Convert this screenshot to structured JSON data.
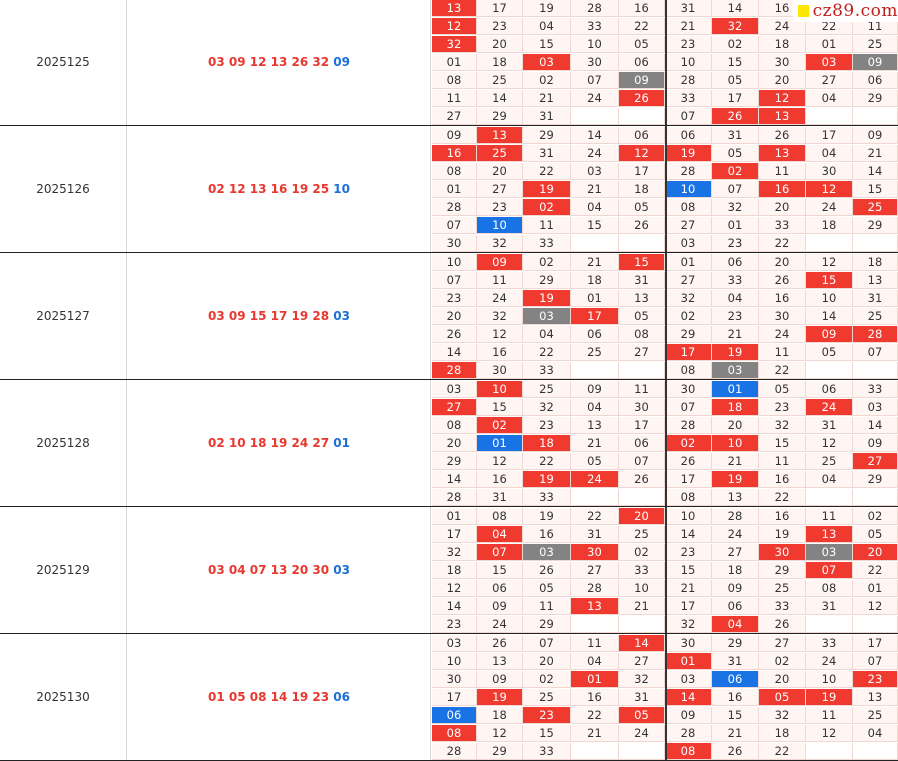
{
  "watermark": {
    "text": "cz89.com",
    "icon": "yellow-square-icon"
  },
  "colors": {
    "hot": "#f0392f",
    "cold": "#838383",
    "blue": "#1973e5",
    "red_text": "#e8382f",
    "blue_text": "#1b6fd6"
  },
  "blocks": [
    {
      "period": "2025125",
      "red_numbers": "03 09 12 13 26 32",
      "blue_number": "09",
      "left_grid": [
        [
          "13",
          "17",
          "19",
          "28",
          "16"
        ],
        [
          "12",
          "23",
          "04",
          "33",
          "22"
        ],
        [
          "32",
          "20",
          "15",
          "10",
          "05"
        ],
        [
          "01",
          "18",
          "03",
          "30",
          "06"
        ],
        [
          "08",
          "25",
          "02",
          "07",
          "09"
        ],
        [
          "11",
          "14",
          "21",
          "24",
          "26"
        ],
        [
          "27",
          "29",
          "31",
          "",
          ""
        ]
      ],
      "left_marks": [
        [
          "h",
          "",
          "",
          "",
          ""
        ],
        [
          "h",
          "",
          "",
          "",
          ""
        ],
        [
          "h",
          "",
          "",
          "",
          ""
        ],
        [
          "",
          "",
          "h",
          "",
          ""
        ],
        [
          "",
          "",
          "",
          "",
          "c"
        ],
        [
          "",
          "",
          "",
          "",
          "h"
        ],
        [
          "",
          "",
          "",
          "",
          ""
        ]
      ],
      "right_grid": [
        [
          "31",
          "14",
          "16",
          "",
          ""
        ],
        [
          "21",
          "32",
          "24",
          "22",
          "11"
        ],
        [
          "23",
          "02",
          "18",
          "01",
          "25"
        ],
        [
          "10",
          "15",
          "30",
          "03",
          "09"
        ],
        [
          "28",
          "05",
          "20",
          "27",
          "06"
        ],
        [
          "33",
          "17",
          "12",
          "04",
          "29"
        ],
        [
          "07",
          "26",
          "13",
          "",
          ""
        ]
      ],
      "right_marks": [
        [
          "",
          "",
          "",
          "",
          ""
        ],
        [
          "",
          "h",
          "",
          "",
          ""
        ],
        [
          "",
          "",
          "",
          "",
          ""
        ],
        [
          "",
          "",
          "",
          "h",
          "c"
        ],
        [
          "",
          "",
          "",
          "",
          ""
        ],
        [
          "",
          "",
          "h",
          "",
          ""
        ],
        [
          "",
          "h",
          "h",
          "",
          ""
        ]
      ]
    },
    {
      "period": "2025126",
      "red_numbers": "02 12 13 16 19 25",
      "blue_number": "10",
      "left_grid": [
        [
          "09",
          "13",
          "29",
          "14",
          "06"
        ],
        [
          "16",
          "25",
          "31",
          "24",
          "12"
        ],
        [
          "08",
          "20",
          "22",
          "03",
          "17"
        ],
        [
          "01",
          "27",
          "19",
          "21",
          "18"
        ],
        [
          "28",
          "23",
          "02",
          "04",
          "05"
        ],
        [
          "07",
          "10",
          "11",
          "15",
          "26"
        ],
        [
          "30",
          "32",
          "33",
          "",
          ""
        ]
      ],
      "left_marks": [
        [
          "",
          "h",
          "",
          "",
          ""
        ],
        [
          "h",
          "h",
          "",
          "",
          "h"
        ],
        [
          "",
          "",
          "",
          "",
          ""
        ],
        [
          "",
          "",
          "h",
          "",
          ""
        ],
        [
          "",
          "",
          "h",
          "",
          ""
        ],
        [
          "",
          "b",
          "",
          "",
          ""
        ],
        [
          "",
          "",
          "",
          "",
          ""
        ]
      ],
      "right_grid": [
        [
          "06",
          "31",
          "26",
          "17",
          "09"
        ],
        [
          "19",
          "05",
          "13",
          "04",
          "21"
        ],
        [
          "28",
          "02",
          "11",
          "30",
          "14"
        ],
        [
          "10",
          "07",
          "16",
          "12",
          "15"
        ],
        [
          "08",
          "32",
          "20",
          "24",
          "25"
        ],
        [
          "27",
          "01",
          "33",
          "18",
          "29"
        ],
        [
          "03",
          "23",
          "22",
          "",
          ""
        ]
      ],
      "right_marks": [
        [
          "",
          "",
          "",
          "",
          ""
        ],
        [
          "h",
          "",
          "h",
          "",
          ""
        ],
        [
          "",
          "h",
          "",
          "",
          ""
        ],
        [
          "b",
          "",
          "h",
          "h",
          ""
        ],
        [
          "",
          "",
          "",
          "",
          "h"
        ],
        [
          "",
          "",
          "",
          "",
          ""
        ],
        [
          "",
          "",
          "",
          "",
          ""
        ]
      ]
    },
    {
      "period": "2025127",
      "red_numbers": "03 09 15 17 19 28",
      "blue_number": "03",
      "left_grid": [
        [
          "10",
          "09",
          "02",
          "21",
          "15"
        ],
        [
          "07",
          "11",
          "29",
          "18",
          "31"
        ],
        [
          "23",
          "24",
          "19",
          "01",
          "13"
        ],
        [
          "20",
          "32",
          "03",
          "17",
          "05"
        ],
        [
          "26",
          "12",
          "04",
          "06",
          "08"
        ],
        [
          "14",
          "16",
          "22",
          "25",
          "27"
        ],
        [
          "28",
          "30",
          "33",
          "",
          ""
        ]
      ],
      "left_marks": [
        [
          "",
          "h",
          "",
          "",
          "h"
        ],
        [
          "",
          "",
          "",
          "",
          ""
        ],
        [
          "",
          "",
          "h",
          "",
          ""
        ],
        [
          "",
          "",
          "c",
          "h",
          ""
        ],
        [
          "",
          "",
          "",
          "",
          ""
        ],
        [
          "",
          "",
          "",
          "",
          ""
        ],
        [
          "h",
          "",
          "",
          "",
          ""
        ]
      ],
      "right_grid": [
        [
          "01",
          "06",
          "20",
          "12",
          "18"
        ],
        [
          "27",
          "33",
          "26",
          "15",
          "13"
        ],
        [
          "32",
          "04",
          "16",
          "10",
          "31"
        ],
        [
          "02",
          "23",
          "30",
          "14",
          "25"
        ],
        [
          "29",
          "21",
          "24",
          "09",
          "28"
        ],
        [
          "17",
          "19",
          "11",
          "05",
          "07"
        ],
        [
          "08",
          "03",
          "22",
          "",
          ""
        ]
      ],
      "right_marks": [
        [
          "",
          "",
          "",
          "",
          ""
        ],
        [
          "",
          "",
          "",
          "h",
          ""
        ],
        [
          "",
          "",
          "",
          "",
          ""
        ],
        [
          "",
          "",
          "",
          "",
          ""
        ],
        [
          "",
          "",
          "",
          "h",
          "h"
        ],
        [
          "h",
          "h",
          "",
          "",
          ""
        ],
        [
          "",
          "c",
          "",
          "",
          ""
        ]
      ]
    },
    {
      "period": "2025128",
      "red_numbers": "02 10 18 19 24 27",
      "blue_number": "01",
      "left_grid": [
        [
          "03",
          "10",
          "25",
          "09",
          "11"
        ],
        [
          "27",
          "15",
          "32",
          "04",
          "30"
        ],
        [
          "08",
          "02",
          "23",
          "13",
          "17"
        ],
        [
          "20",
          "01",
          "18",
          "21",
          "06"
        ],
        [
          "29",
          "12",
          "22",
          "05",
          "07"
        ],
        [
          "14",
          "16",
          "19",
          "24",
          "26"
        ],
        [
          "28",
          "31",
          "33",
          "",
          ""
        ]
      ],
      "left_marks": [
        [
          "",
          "h",
          "",
          "",
          ""
        ],
        [
          "h",
          "",
          "",
          "",
          ""
        ],
        [
          "",
          "h",
          "",
          "",
          ""
        ],
        [
          "",
          "b",
          "h",
          "",
          ""
        ],
        [
          "",
          "",
          "",
          "",
          ""
        ],
        [
          "",
          "",
          "h",
          "h",
          ""
        ],
        [
          "",
          "",
          "",
          "",
          ""
        ]
      ],
      "right_grid": [
        [
          "30",
          "01",
          "05",
          "06",
          "33"
        ],
        [
          "07",
          "18",
          "23",
          "24",
          "03"
        ],
        [
          "28",
          "20",
          "32",
          "31",
          "14"
        ],
        [
          "02",
          "10",
          "15",
          "12",
          "09"
        ],
        [
          "26",
          "21",
          "11",
          "25",
          "27"
        ],
        [
          "17",
          "19",
          "16",
          "04",
          "29"
        ],
        [
          "08",
          "13",
          "22",
          "",
          ""
        ]
      ],
      "right_marks": [
        [
          "",
          "b",
          "",
          "",
          ""
        ],
        [
          "",
          "h",
          "",
          "h",
          ""
        ],
        [
          "",
          "",
          "",
          "",
          ""
        ],
        [
          "h",
          "h",
          "",
          "",
          ""
        ],
        [
          "",
          "",
          "",
          "",
          "h"
        ],
        [
          "",
          "h",
          "",
          "",
          ""
        ],
        [
          "",
          "",
          "",
          "",
          ""
        ]
      ]
    },
    {
      "period": "2025129",
      "red_numbers": "03 04 07 13 20 30",
      "blue_number": "03",
      "left_grid": [
        [
          "01",
          "08",
          "19",
          "22",
          "20"
        ],
        [
          "17",
          "04",
          "16",
          "31",
          "25"
        ],
        [
          "32",
          "07",
          "03",
          "30",
          "02"
        ],
        [
          "18",
          "15",
          "26",
          "27",
          "33"
        ],
        [
          "12",
          "06",
          "05",
          "28",
          "10"
        ],
        [
          "14",
          "09",
          "11",
          "13",
          "21"
        ],
        [
          "23",
          "24",
          "29",
          "",
          ""
        ]
      ],
      "left_marks": [
        [
          "",
          "",
          "",
          "",
          "h"
        ],
        [
          "",
          "h",
          "",
          "",
          ""
        ],
        [
          "",
          "h",
          "c",
          "h",
          ""
        ],
        [
          "",
          "",
          "",
          "",
          ""
        ],
        [
          "",
          "",
          "",
          "",
          ""
        ],
        [
          "",
          "",
          "",
          "h",
          ""
        ],
        [
          "",
          "",
          "",
          "",
          ""
        ]
      ],
      "right_grid": [
        [
          "10",
          "28",
          "16",
          "11",
          "02"
        ],
        [
          "14",
          "24",
          "19",
          "13",
          "05"
        ],
        [
          "23",
          "27",
          "30",
          "03",
          "20"
        ],
        [
          "15",
          "18",
          "29",
          "07",
          "22"
        ],
        [
          "21",
          "09",
          "25",
          "08",
          "01"
        ],
        [
          "17",
          "06",
          "33",
          "31",
          "12"
        ],
        [
          "32",
          "04",
          "26",
          "",
          ""
        ]
      ],
      "right_marks": [
        [
          "",
          "",
          "",
          "",
          ""
        ],
        [
          "",
          "",
          "",
          "h",
          ""
        ],
        [
          "",
          "",
          "h",
          "c",
          "h"
        ],
        [
          "",
          "",
          "",
          "h",
          ""
        ],
        [
          "",
          "",
          "",
          "",
          ""
        ],
        [
          "",
          "",
          "",
          "",
          ""
        ],
        [
          "",
          "h",
          "",
          "",
          ""
        ]
      ]
    },
    {
      "period": "2025130",
      "red_numbers": "01 05 08 14 19 23",
      "blue_number": "06",
      "left_grid": [
        [
          "03",
          "26",
          "07",
          "11",
          "14"
        ],
        [
          "10",
          "13",
          "20",
          "04",
          "27"
        ],
        [
          "30",
          "09",
          "02",
          "01",
          "32"
        ],
        [
          "17",
          "19",
          "25",
          "16",
          "31"
        ],
        [
          "06",
          "18",
          "23",
          "22",
          "05"
        ],
        [
          "08",
          "12",
          "15",
          "21",
          "24"
        ],
        [
          "28",
          "29",
          "33",
          "",
          ""
        ]
      ],
      "left_marks": [
        [
          "",
          "",
          "",
          "",
          "h"
        ],
        [
          "",
          "",
          "",
          "",
          ""
        ],
        [
          "",
          "",
          "",
          "h",
          ""
        ],
        [
          "",
          "h",
          "",
          "",
          ""
        ],
        [
          "b",
          "",
          "h",
          "",
          "h"
        ],
        [
          "h",
          "",
          "",
          "",
          ""
        ],
        [
          "",
          "",
          "",
          "",
          ""
        ]
      ],
      "right_grid": [
        [
          "30",
          "29",
          "27",
          "33",
          "17"
        ],
        [
          "01",
          "31",
          "02",
          "24",
          "07"
        ],
        [
          "03",
          "06",
          "20",
          "10",
          "23"
        ],
        [
          "14",
          "16",
          "05",
          "19",
          "13"
        ],
        [
          "09",
          "15",
          "32",
          "11",
          "25"
        ],
        [
          "28",
          "21",
          "18",
          "12",
          "04"
        ],
        [
          "08",
          "26",
          "22",
          "",
          ""
        ]
      ],
      "right_marks": [
        [
          "",
          "",
          "",
          "",
          ""
        ],
        [
          "h",
          "",
          "",
          "",
          ""
        ],
        [
          "",
          "b",
          "",
          "",
          "h"
        ],
        [
          "h",
          "",
          "h",
          "h",
          ""
        ],
        [
          "",
          "",
          "",
          "",
          ""
        ],
        [
          "",
          "",
          "",
          "",
          ""
        ],
        [
          "h",
          "",
          "",
          "",
          ""
        ]
      ]
    }
  ]
}
